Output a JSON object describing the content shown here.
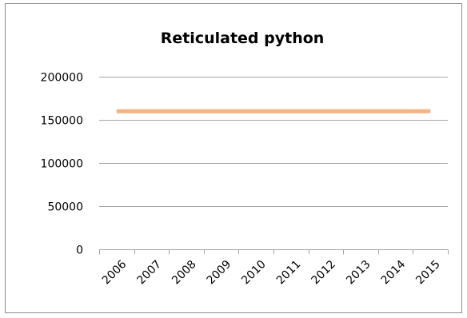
{
  "chart_data": {
    "type": "line",
    "title": "Reticulated python",
    "xlabel": "",
    "ylabel": "",
    "categories": [
      "2006",
      "2007",
      "2008",
      "2009",
      "2010",
      "2011",
      "2012",
      "2013",
      "2014",
      "2015"
    ],
    "series": [
      {
        "values": [
          160000,
          160000,
          160000,
          160000,
          160000,
          160000,
          160000,
          160000,
          160000,
          160000
        ],
        "color": "#f7b27d"
      }
    ],
    "ylim": [
      0,
      200000
    ],
    "yticks": [
      0,
      50000,
      100000,
      150000,
      200000
    ],
    "ytick_labels": [
      "0",
      "50000",
      "100000",
      "150000",
      "200000"
    ],
    "grid": true,
    "legend": "none",
    "colors": {
      "gridline": "#a6a6a6",
      "axis": "#a6a6a6",
      "text": "#000000"
    }
  }
}
